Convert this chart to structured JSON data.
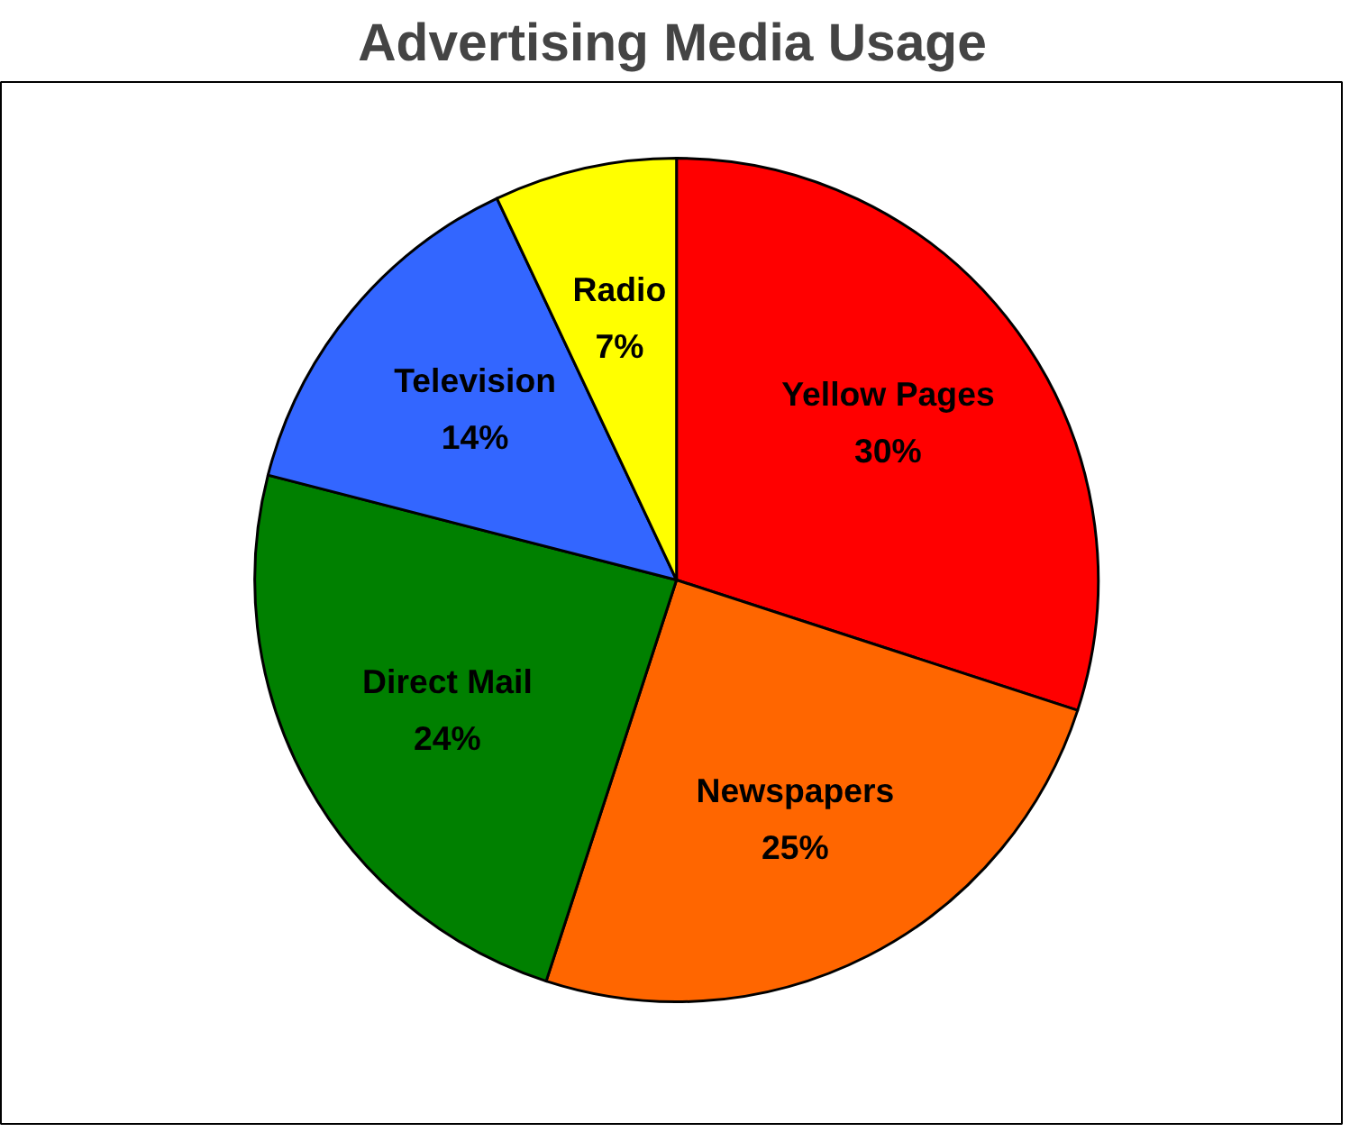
{
  "chart_data": {
    "type": "pie",
    "title": "Advertising Media Usage",
    "categories": [
      "Yellow Pages",
      "Newspapers",
      "Direct Mail",
      "Television",
      "Radio"
    ],
    "values": [
      30,
      25,
      24,
      14,
      7
    ],
    "colors": [
      "#ff0000",
      "#ff6600",
      "#008000",
      "#3366ff",
      "#ffff00"
    ],
    "value_labels": [
      "30%",
      "25%",
      "24%",
      "14%",
      "7%"
    ]
  }
}
